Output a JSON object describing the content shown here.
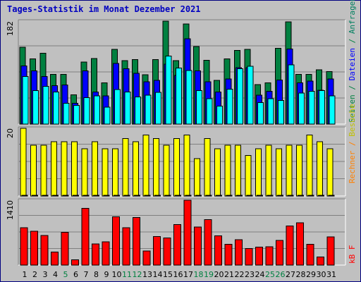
{
  "title": "Tages-Statistik im Monat Dezember 2021",
  "side_labels": {
    "top": [
      {
        "text": "Seiten",
        "color": "#008040"
      },
      {
        "text": " / ",
        "color": "#008040"
      },
      {
        "text": "Dateien",
        "color": "#0000ff"
      },
      {
        "text": " / ",
        "color": "#008040"
      },
      {
        "text": "Anfragen",
        "color": "#008060"
      }
    ],
    "mid": [
      {
        "text": "Rechner",
        "color": "#ff8000"
      },
      {
        "text": " / ",
        "color": "#ff8000"
      },
      {
        "text": "Besuche",
        "color": "#c0c000"
      }
    ],
    "bot": [
      {
        "text": "kB F",
        "color": "#ff0000"
      }
    ]
  },
  "colors": {
    "anfragen": "#008040",
    "dateien": "#0000ff",
    "seiten": "#00ffff",
    "besuche": "#ffff00",
    "rechner": "#ff8000",
    "kbf": "#ff0000",
    "weekday_label": "#000000",
    "weekend_label": "#008040"
  },
  "chart_data": [
    {
      "type": "bar",
      "name": "requests_files_pages",
      "ymax_label": "182",
      "ylim": [
        0,
        182
      ],
      "categories": [
        "1",
        "2",
        "3",
        "4",
        "5",
        "6",
        "7",
        "8",
        "9",
        "10",
        "11",
        "12",
        "13",
        "14",
        "15",
        "16",
        "17",
        "18",
        "19",
        "20",
        "21",
        "22",
        "23",
        "24",
        "25",
        "26",
        "27",
        "28",
        "29",
        "30",
        "31"
      ],
      "series": [
        {
          "name": "Anfragen",
          "values": [
            136,
            115,
            125,
            88,
            88,
            52,
            110,
            116,
            73,
            132,
            112,
            114,
            87,
            114,
            182,
            112,
            177,
            137,
            113,
            77,
            115,
            130,
            132,
            70,
            73,
            134,
            181,
            88,
            88,
            96,
            93
          ]
        },
        {
          "name": "Dateien",
          "values": [
            103,
            94,
            84,
            68,
            69,
            37,
            94,
            57,
            50,
            107,
            98,
            90,
            75,
            77,
            106,
            86,
            151,
            94,
            75,
            57,
            80,
            100,
            100,
            51,
            58,
            78,
            133,
            73,
            76,
            60,
            80
          ]
        },
        {
          "name": "Seiten",
          "values": [
            84,
            59,
            67,
            57,
            37,
            33,
            47,
            50,
            30,
            61,
            57,
            48,
            51,
            56,
            120,
            99,
            95,
            59,
            45,
            32,
            62,
            98,
            102,
            38,
            45,
            42,
            105,
            55,
            58,
            59,
            50
          ]
        }
      ]
    },
    {
      "type": "bar",
      "name": "visits_hosts",
      "ymax_label": "20",
      "ylim": [
        0,
        20
      ],
      "categories": [
        "1",
        "2",
        "3",
        "4",
        "5",
        "6",
        "7",
        "8",
        "9",
        "10",
        "11",
        "12",
        "13",
        "14",
        "15",
        "16",
        "17",
        "18",
        "19",
        "20",
        "21",
        "22",
        "23",
        "24",
        "25",
        "26",
        "27",
        "28",
        "29",
        "30",
        "31"
      ],
      "series": [
        {
          "name": "Besuche",
          "values": [
            20,
            15,
            15,
            16,
            16,
            16,
            14,
            16,
            14,
            14,
            17,
            16,
            18,
            17,
            15,
            17,
            18,
            11,
            17,
            14,
            15,
            15,
            12,
            14,
            15,
            14,
            15,
            15,
            18,
            16,
            14
          ]
        },
        {
          "name": "Rechner",
          "values": [
            1,
            1,
            1,
            1,
            1,
            1,
            1,
            1,
            1,
            1,
            1,
            1,
            1,
            1,
            1,
            1,
            1,
            1,
            1,
            1,
            1,
            1,
            1,
            1,
            1,
            1,
            1,
            1,
            1,
            1,
            1
          ]
        }
      ]
    },
    {
      "type": "bar",
      "name": "kbytes",
      "ymax_label": "1410",
      "ylim": [
        0,
        1410
      ],
      "categories": [
        "1",
        "2",
        "3",
        "4",
        "5",
        "6",
        "7",
        "8",
        "9",
        "10",
        "11",
        "12",
        "13",
        "14",
        "15",
        "16",
        "17",
        "18",
        "19",
        "20",
        "21",
        "22",
        "23",
        "24",
        "25",
        "26",
        "27",
        "28",
        "29",
        "30",
        "31"
      ],
      "series": [
        {
          "name": "kB F",
          "values": [
            812,
            738,
            643,
            281,
            709,
            115,
            1236,
            460,
            502,
            1048,
            816,
            1038,
            304,
            623,
            587,
            885,
            1410,
            829,
            989,
            635,
            455,
            552,
            359,
            392,
            400,
            534,
            849,
            919,
            449,
            176,
            615
          ]
        }
      ]
    }
  ],
  "weekend_days": [
    5,
    11,
    12,
    18,
    19,
    25,
    26
  ]
}
